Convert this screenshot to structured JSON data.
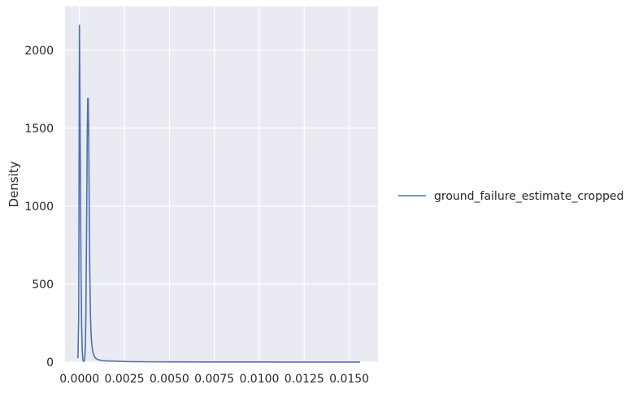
{
  "chart_data": {
    "type": "line",
    "title": "",
    "xlabel": "",
    "ylabel": "Density",
    "xlim": [
      -0.0008,
      0.0166
    ],
    "ylim": [
      0,
      2280
    ],
    "x_ticks": [
      0.0,
      0.0025,
      0.005,
      0.0075,
      0.01,
      0.0125,
      0.015
    ],
    "x_tick_labels": [
      "0.0000",
      "0.0025",
      "0.0050",
      "0.0075",
      "0.0100",
      "0.0125",
      "0.0150"
    ],
    "y_ticks": [
      0,
      500,
      1000,
      1500,
      2000
    ],
    "y_tick_labels": [
      "0",
      "500",
      "1000",
      "1500",
      "2000"
    ],
    "grid": true,
    "legend_placement": "right",
    "series": [
      {
        "name": "ground_failure_estimate_cropped",
        "color": "#4c72b0",
        "x": [
          -8e-05,
          -4e-05,
          0.0,
          3e-05,
          6e-05,
          9e-05,
          0.00012,
          0.00015,
          0.00018,
          0.00021,
          0.00024,
          0.00028,
          0.00032,
          0.00036,
          0.0004,
          0.00043,
          0.00046,
          0.00049,
          0.00052,
          0.00055,
          0.00058,
          0.00061,
          0.00064,
          0.00067,
          0.0007,
          0.00075,
          0.0008,
          0.00085,
          0.0009,
          0.001,
          0.0011,
          0.0012,
          0.0013,
          0.0015,
          0.0017,
          0.002,
          0.0023,
          0.0025,
          0.003,
          0.004,
          0.005,
          0.0075,
          0.01,
          0.0125,
          0.0156
        ],
        "y": [
          25,
          300,
          2160,
          1700,
          1100,
          550,
          250,
          100,
          30,
          8,
          5,
          10,
          60,
          300,
          900,
          1400,
          1690,
          1690,
          1400,
          900,
          550,
          320,
          200,
          140,
          100,
          65,
          45,
          32,
          25,
          18,
          14,
          11,
          9,
          8,
          7,
          6,
          5,
          4,
          3,
          2,
          1.5,
          1,
          0.8,
          0.5,
          0.3
        ]
      }
    ]
  }
}
